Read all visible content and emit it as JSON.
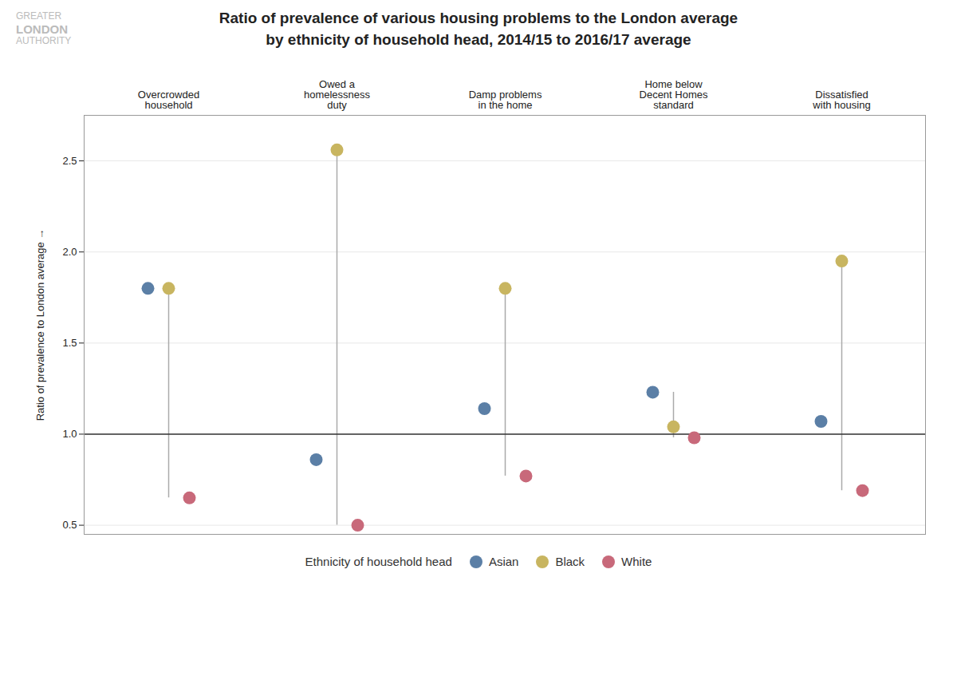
{
  "chart_data": {
    "type": "dot",
    "title": "Ratio of prevalence of various housing problems to the London average\nby ethnicity of household head, 2014/15 to 2016/17 average",
    "ylabel": "Ratio of prevalence to London average",
    "categories": [
      "Overcrowded\nhousehold",
      "Owed a\nhomelessness\nduty",
      "Damp problems\nin the home",
      "Home below\nDecent Homes\nstandard",
      "Dissatisfied\nwith housing"
    ],
    "series": [
      {
        "name": "Asian",
        "color": "#5b7fa6",
        "values": [
          1.8,
          0.86,
          1.14,
          1.23,
          1.07
        ]
      },
      {
        "name": "Black",
        "color": "#c8b560",
        "values": [
          1.8,
          2.56,
          1.8,
          1.04,
          1.95
        ]
      },
      {
        "name": "White",
        "color": "#c8697a",
        "values": [
          0.65,
          0.5,
          0.77,
          0.98,
          0.69
        ]
      }
    ],
    "ylim": [
      0.45,
      2.75
    ],
    "yticks": [
      0.5,
      {
        "value": 1,
        "label": "1.0"
      },
      1.5,
      {
        "value": 2,
        "label": "2.0"
      },
      2.5
    ],
    "reference_line": 1,
    "grid": true,
    "legend": "bottom",
    "legend_title": "Ethnicity of household head",
    "annotations": [
      "GREATER",
      "LONDON",
      "AUTHORITY"
    ]
  }
}
